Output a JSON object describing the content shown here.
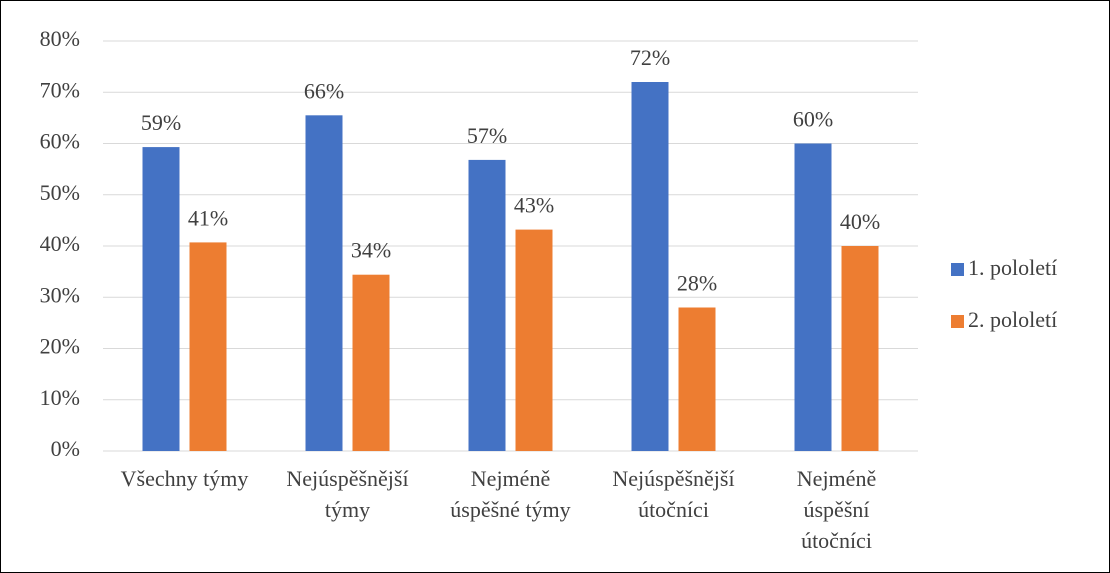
{
  "chart_data": {
    "type": "bar",
    "categories": [
      [
        "Všechny týmy"
      ],
      [
        "Nejúspěšnější",
        "týmy"
      ],
      [
        "Nejméně",
        "úspěšné týmy"
      ],
      [
        "Nejúspěšnější",
        "útočníci"
      ],
      [
        "Nejméně",
        "úspěšní",
        "útočníci"
      ]
    ],
    "series": [
      {
        "name": "1. pololetí",
        "color": "#4472c4",
        "values": [
          59.3,
          65.5,
          56.8,
          72,
          60
        ],
        "value_labels": [
          "59%",
          "66%",
          "57%",
          "72%",
          "60%"
        ]
      },
      {
        "name": "2. pololetí",
        "color": "#ed7d31",
        "values": [
          40.7,
          34.4,
          43.2,
          28,
          40
        ],
        "value_labels": [
          "41%",
          "34%",
          "43%",
          "28%",
          "40%"
        ]
      }
    ],
    "ylim": [
      0,
      80
    ],
    "yticks": [
      {
        "value": 0,
        "label": "0%"
      },
      {
        "value": 10,
        "label": "10%"
      },
      {
        "value": 20,
        "label": "20%"
      },
      {
        "value": 30,
        "label": "30%"
      },
      {
        "value": 40,
        "label": "40%"
      },
      {
        "value": 50,
        "label": "50%"
      },
      {
        "value": 60,
        "label": "60%"
      },
      {
        "value": 70,
        "label": "70%"
      },
      {
        "value": 80,
        "label": "80%"
      }
    ],
    "grid": true,
    "legend": "right"
  }
}
